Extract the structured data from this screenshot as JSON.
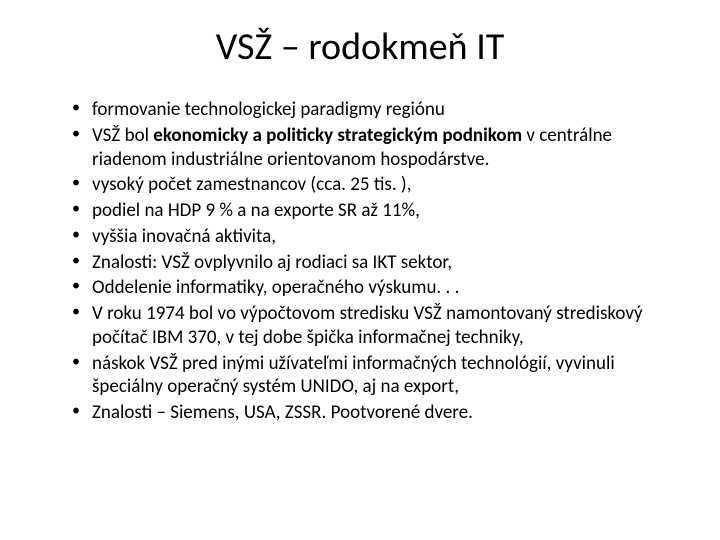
{
  "slide": {
    "title": "VSŽ – rodokmeň IT",
    "bullets": [
      {
        "text": "formovanie technologickej paradigmy regiónu"
      },
      {
        "prefix": "VSŽ bol ",
        "bold": "ekonomicky a politicky strategickým podnikom ",
        "suffix": "v centrálne riadenom industriálne orientovanom hospodárstve."
      },
      {
        "text": "vysoký počet zamestnancov (cca. 25 tis. ),"
      },
      {
        "text": "podiel na HDP 9 % a na exporte SR až 11%,"
      },
      {
        "text": "vyššia inovačná aktivita,"
      },
      {
        "text": "Znalosti: VSŽ ovplyvnilo aj rodiaci sa IKT sektor,"
      },
      {
        "text": "Oddelenie informatiky, operačného výskumu. . ."
      },
      {
        "text": "V roku  1974 bol vo výpočtovom stredisku VSŽ namontovaný strediskový počítač IBM 370, v tej dobe špička informačnej techniky,"
      },
      {
        "text": "náskok VSŽ pred inými užívateľmi informačných technológií, vyvinuli  špeciálny operačný systém UNIDO, aj na export,"
      },
      {
        "text": "Znalosti – Siemens, USA, ZSSR. Pootvorené dvere."
      }
    ]
  },
  "styles": {
    "title_fontsize": 38,
    "body_fontsize": 19,
    "background_color": "#ffffff",
    "text_color": "#000000"
  }
}
